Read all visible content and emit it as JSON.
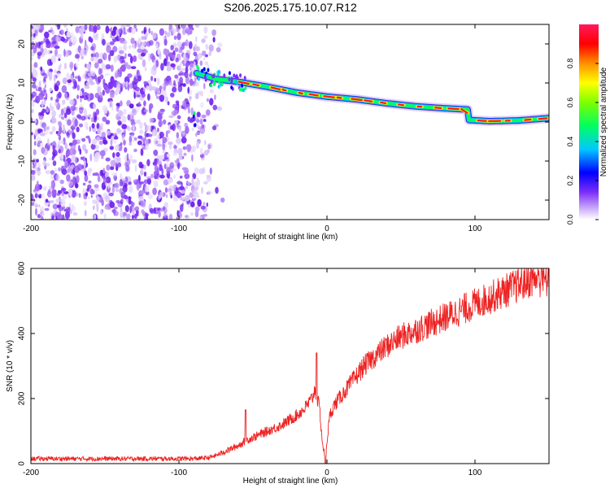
{
  "figure_title": "S206.2025.175.10.07.R12",
  "chart_data": [
    {
      "type": "heatmap",
      "title": "",
      "xlabel": "Height of straight line (km)",
      "ylabel": "Frequency (Hz)",
      "xlim": [
        -200,
        150
      ],
      "ylim": [
        -25,
        25
      ],
      "x_ticks": [
        -200,
        -100,
        0,
        100
      ],
      "y_ticks": [
        -20,
        -10,
        0,
        10,
        20
      ],
      "grid": false,
      "colorbar": {
        "label": "Normalized spectral amplitude",
        "range": [
          0,
          1
        ],
        "ticks": [
          "0.0",
          "0.2",
          "0.4",
          "0.6",
          "0.8"
        ],
        "colormap": [
          "#ffffff",
          "#7b2ff7",
          "#0000ff",
          "#00ffff",
          "#00ff00",
          "#ffff00",
          "#ff8c00",
          "#ff0000",
          "#ff1493"
        ]
      },
      "noise_region": {
        "x_range": [
          -200,
          -70
        ],
        "frequency_range": [
          -25,
          25
        ],
        "amplitude": "low"
      },
      "ridge": [
        {
          "x": -88,
          "frequency": 12.5
        },
        {
          "x": -75,
          "frequency": 11.0
        },
        {
          "x": -60,
          "frequency": 10.3
        },
        {
          "x": -40,
          "frequency": 9.0
        },
        {
          "x": -20,
          "frequency": 7.5
        },
        {
          "x": 0,
          "frequency": 6.5
        },
        {
          "x": 20,
          "frequency": 5.8
        },
        {
          "x": 40,
          "frequency": 4.8
        },
        {
          "x": 60,
          "frequency": 4.0
        },
        {
          "x": 80,
          "frequency": 3.5
        },
        {
          "x": 95,
          "frequency": 3.2
        },
        {
          "x": 96,
          "frequency": 0.5
        },
        {
          "x": 110,
          "frequency": 0.2
        },
        {
          "x": 130,
          "frequency": 0.4
        },
        {
          "x": 150,
          "frequency": 1.0
        }
      ]
    },
    {
      "type": "line",
      "title": "",
      "xlabel": "Height of straight line (km)",
      "ylabel": "SNR (10 * v/v)",
      "xlim": [
        -200,
        150
      ],
      "ylim": [
        0,
        600
      ],
      "x_ticks": [
        -200,
        -100,
        0,
        100
      ],
      "y_ticks": [
        0,
        200,
        400,
        600
      ],
      "grid": false,
      "series_color": "#ee2222",
      "series": [
        {
          "x": [
            -200,
            -180,
            -160,
            -140,
            -120,
            -100,
            -90,
            -80,
            -75,
            -70,
            -65,
            -60,
            -55,
            -50,
            -45,
            -40,
            -35,
            -30,
            -25,
            -20,
            -15,
            -10,
            -8,
            -5,
            -3,
            -1,
            0,
            2,
            5,
            10,
            15,
            20,
            25,
            30,
            40,
            50,
            60,
            70,
            80,
            90,
            100,
            110,
            120,
            130,
            140,
            150
          ],
          "y": [
            15,
            15,
            15,
            15,
            15,
            15,
            15,
            18,
            25,
            35,
            45,
            55,
            70,
            80,
            90,
            100,
            110,
            120,
            135,
            150,
            170,
            200,
            230,
            170,
            60,
            15,
            70,
            150,
            180,
            210,
            240,
            270,
            300,
            320,
            360,
            390,
            410,
            430,
            450,
            470,
            490,
            510,
            530,
            550,
            570,
            560
          ]
        }
      ],
      "spikes": [
        {
          "x": -55,
          "y": 165
        },
        {
          "x": -7,
          "y": 340
        },
        {
          "x": -1,
          "y": 0
        },
        {
          "x": 145,
          "y": 600
        }
      ]
    }
  ]
}
